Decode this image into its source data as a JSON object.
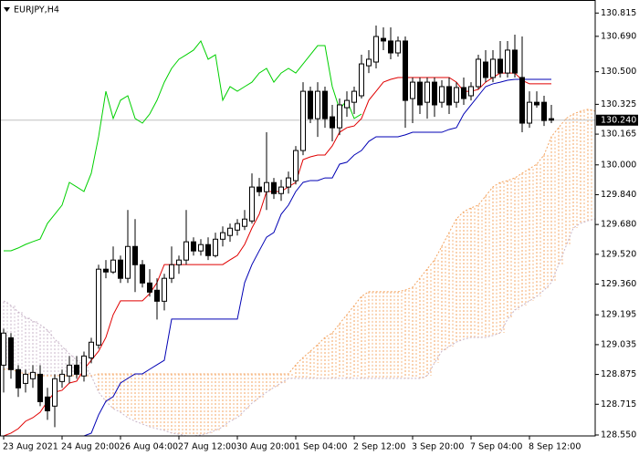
{
  "chart_data": {
    "type": "candlestick",
    "title": "EURJPY,H4",
    "categories": [
      "23 Aug 2021",
      null,
      null,
      null,
      null,
      null,
      null,
      null,
      "24 Aug 20:00",
      null,
      null,
      null,
      null,
      null,
      null,
      null,
      "26 Aug 04:00",
      null,
      null,
      null,
      null,
      null,
      null,
      null,
      "27 Aug 12:00",
      null,
      null,
      null,
      null,
      null,
      null,
      null,
      "30 Aug 20:00",
      null,
      null,
      null,
      null,
      null,
      null,
      null,
      "1 Sep 04:00",
      null,
      null,
      null,
      null,
      null,
      null,
      null,
      "2 Sep 12:00",
      null,
      null,
      null,
      null,
      null,
      null,
      null,
      "3 Sep 20:00",
      null,
      null,
      null,
      null,
      null,
      null,
      null,
      "7 Sep 04:00",
      null,
      null,
      null,
      null,
      null,
      null,
      null,
      "8 Sep 12:00",
      null,
      null,
      null,
      null,
      null,
      null,
      null,
      null,
      null
    ],
    "ohlc": [
      [
        128.925,
        129.121,
        128.778,
        129.097
      ],
      [
        129.072,
        129.097,
        128.852,
        128.901
      ],
      [
        128.901,
        128.925,
        128.754,
        128.803
      ],
      [
        128.827,
        128.901,
        128.778,
        128.876
      ],
      [
        128.852,
        128.925,
        128.803,
        128.886
      ],
      [
        128.876,
        128.925,
        128.705,
        128.729
      ],
      [
        128.754,
        128.803,
        128.631,
        128.68
      ],
      [
        128.705,
        128.876,
        128.592,
        128.852
      ],
      [
        128.837,
        128.901,
        128.803,
        128.876
      ],
      [
        128.867,
        128.974,
        128.827,
        128.925
      ],
      [
        128.925,
        128.974,
        128.852,
        128.876
      ],
      [
        128.867,
        128.998,
        128.837,
        128.974
      ],
      [
        128.964,
        129.072,
        128.935,
        129.048
      ],
      [
        129.033,
        129.464,
        129.013,
        129.44
      ],
      [
        129.44,
        129.489,
        129.391,
        129.425
      ],
      [
        129.425,
        129.562,
        129.415,
        129.489
      ],
      [
        129.489,
        129.513,
        129.366,
        129.391
      ],
      [
        129.391,
        129.758,
        129.366,
        129.562
      ],
      [
        129.562,
        129.709,
        129.317,
        129.464
      ],
      [
        129.464,
        129.489,
        129.342,
        129.366
      ],
      [
        129.366,
        129.44,
        129.293,
        129.317
      ],
      [
        129.327,
        129.391,
        129.17,
        129.268
      ],
      [
        129.268,
        129.415,
        129.219,
        129.391
      ],
      [
        129.391,
        129.562,
        129.366,
        129.464
      ],
      [
        129.464,
        129.513,
        129.415,
        129.489
      ],
      [
        129.489,
        129.758,
        129.464,
        129.587
      ],
      [
        129.587,
        129.611,
        129.513,
        129.538
      ],
      [
        129.538,
        129.601,
        129.513,
        129.572
      ],
      [
        129.572,
        129.611,
        129.489,
        129.513
      ],
      [
        129.513,
        129.636,
        129.503,
        129.601
      ],
      [
        129.601,
        129.67,
        129.562,
        129.636
      ],
      [
        129.621,
        129.685,
        129.587,
        129.66
      ],
      [
        129.65,
        129.709,
        129.621,
        129.685
      ],
      [
        129.67,
        129.758,
        129.65,
        129.709
      ],
      [
        129.699,
        129.954,
        129.685,
        129.881
      ],
      [
        129.881,
        129.93,
        129.832,
        129.856
      ],
      [
        129.856,
        130.175,
        129.758,
        129.905
      ],
      [
        129.905,
        129.93,
        129.817,
        129.846
      ],
      [
        129.846,
        129.92,
        129.807,
        129.881
      ],
      [
        129.881,
        129.964,
        129.846,
        129.93
      ],
      [
        129.915,
        130.101,
        129.895,
        130.077
      ],
      [
        130.077,
        130.444,
        130.052,
        130.395
      ],
      [
        130.395,
        130.42,
        130.224,
        130.248
      ],
      [
        130.248,
        130.444,
        130.15,
        130.395
      ],
      [
        130.395,
        130.42,
        130.199,
        130.248
      ],
      [
        130.258,
        130.322,
        130.126,
        130.199
      ],
      [
        130.199,
        130.356,
        130.16,
        130.322
      ],
      [
        130.307,
        130.395,
        130.258,
        130.346
      ],
      [
        130.336,
        130.42,
        130.273,
        130.395
      ],
      [
        130.371,
        130.591,
        130.356,
        130.542
      ],
      [
        130.532,
        130.616,
        130.493,
        130.567
      ],
      [
        130.552,
        130.748,
        130.518,
        130.689
      ],
      [
        130.679,
        130.738,
        130.616,
        130.665
      ],
      [
        130.665,
        130.738,
        130.567,
        130.601
      ],
      [
        130.601,
        130.689,
        130.581,
        130.665
      ],
      [
        130.665,
        130.689,
        130.199,
        130.346
      ],
      [
        130.356,
        130.469,
        130.224,
        130.444
      ],
      [
        130.444,
        130.469,
        130.273,
        130.322
      ],
      [
        130.336,
        130.469,
        130.248,
        130.444
      ],
      [
        130.444,
        130.469,
        130.258,
        130.322
      ],
      [
        130.336,
        130.454,
        130.307,
        130.42
      ],
      [
        130.42,
        130.469,
        130.273,
        130.322
      ],
      [
        130.336,
        130.444,
        130.307,
        130.415
      ],
      [
        130.415,
        130.469,
        130.322,
        130.356
      ],
      [
        130.371,
        130.444,
        130.346,
        130.42
      ],
      [
        130.42,
        130.591,
        130.405,
        130.567
      ],
      [
        130.552,
        130.616,
        130.444,
        130.469
      ],
      [
        130.469,
        130.616,
        130.444,
        130.567
      ],
      [
        130.567,
        130.665,
        130.469,
        130.493
      ],
      [
        130.493,
        130.665,
        130.469,
        130.616
      ],
      [
        130.616,
        130.699,
        130.469,
        130.493
      ],
      [
        130.469,
        130.689,
        130.175,
        130.224
      ],
      [
        130.224,
        130.395,
        130.199,
        130.336
      ],
      [
        130.336,
        130.395,
        130.307,
        130.322
      ],
      [
        130.336,
        130.371,
        130.209,
        130.238
      ],
      [
        130.248,
        130.322,
        130.224,
        130.24
      ],
      null,
      null,
      null,
      null,
      null,
      null
    ],
    "bull_color": "#ffffff",
    "bear_color": "#000000",
    "lines": [
      {
        "color": "#e00000",
        "values": [
          128.545,
          128.56,
          128.584,
          128.624,
          128.643,
          128.672,
          128.731,
          128.78,
          128.79,
          128.829,
          128.839,
          128.903,
          128.951,
          129.0,
          129.074,
          129.196,
          129.27,
          129.27,
          129.27,
          129.27,
          129.309,
          129.368,
          129.465,
          129.465,
          129.465,
          129.465,
          129.465,
          129.465,
          129.465,
          129.465,
          129.465,
          129.49,
          129.514,
          129.573,
          129.661,
          129.735,
          129.857,
          129.857,
          129.857,
          129.882,
          129.906,
          130.028,
          130.043,
          130.053,
          130.053,
          130.102,
          130.175,
          130.2,
          130.209,
          130.249,
          130.347,
          130.395,
          130.444,
          130.459,
          130.469,
          130.469,
          130.469,
          130.469,
          130.469,
          130.469,
          130.469,
          130.469,
          130.444,
          130.395,
          130.395,
          130.405,
          130.444,
          130.469,
          130.493,
          130.493,
          130.493,
          130.454,
          130.435,
          130.435,
          130.435,
          130.435,
          null,
          null,
          null,
          null,
          null,
          null
        ]
      },
      {
        "color": "#0000b4",
        "values": [
          128.545,
          128.545,
          128.545,
          128.545,
          128.545,
          128.545,
          128.545,
          128.545,
          128.545,
          128.545,
          128.545,
          128.545,
          128.56,
          128.658,
          128.731,
          128.756,
          128.829,
          128.854,
          128.878,
          128.878,
          128.903,
          128.927,
          128.951,
          129.172,
          129.172,
          129.172,
          129.172,
          129.172,
          129.172,
          129.172,
          129.172,
          129.172,
          129.172,
          129.368,
          129.465,
          129.539,
          129.612,
          129.637,
          129.735,
          129.784,
          129.857,
          129.906,
          129.916,
          129.916,
          129.93,
          129.93,
          130.004,
          130.014,
          130.053,
          130.077,
          130.126,
          130.151,
          130.151,
          130.151,
          130.151,
          130.161,
          130.175,
          130.175,
          130.175,
          130.175,
          130.175,
          130.19,
          130.2,
          130.273,
          130.322,
          130.371,
          130.42,
          130.435,
          130.444,
          130.454,
          130.459,
          130.459,
          130.459,
          130.459,
          130.459,
          130.459,
          null,
          null,
          null,
          null,
          null,
          null
        ]
      },
      {
        "color": "#00d000",
        "values": [
          129.539,
          129.539,
          129.554,
          129.573,
          129.588,
          129.602,
          129.686,
          129.735,
          129.784,
          129.906,
          129.882,
          129.857,
          129.955,
          130.151,
          130.395,
          130.249,
          130.347,
          130.371,
          130.249,
          130.224,
          130.273,
          130.347,
          130.444,
          130.518,
          130.567,
          130.591,
          130.616,
          130.665,
          130.567,
          130.591,
          130.347,
          130.42,
          130.395,
          130.42,
          130.444,
          130.493,
          130.518,
          130.444,
          130.493,
          130.518,
          130.493,
          130.542,
          130.591,
          130.64,
          130.64,
          130.42,
          130.298,
          130.347,
          130.249,
          130.273,
          null,
          null,
          null,
          null,
          null,
          null,
          null,
          null,
          null,
          null,
          null,
          null,
          null,
          null,
          null,
          null,
          null,
          null,
          null,
          null,
          null,
          null,
          null,
          null,
          null,
          null,
          null,
          null,
          null,
          null,
          null,
          null
        ]
      }
    ],
    "cloud": {
      "span_a": {
        "color": "#f4a460",
        "values": [
          128.903,
          128.903,
          128.888,
          128.878,
          128.878,
          128.868,
          128.868,
          128.868,
          128.868,
          128.868,
          128.868,
          128.868,
          128.868,
          128.878,
          128.878,
          128.878,
          128.878,
          128.878,
          128.878,
          128.878,
          128.878,
          128.878,
          128.878,
          128.878,
          128.878,
          128.878,
          128.878,
          128.878,
          128.878,
          128.878,
          128.878,
          128.878,
          128.878,
          128.878,
          128.878,
          128.878,
          128.878,
          128.878,
          128.878,
          128.878,
          128.927,
          128.966,
          129.0,
          129.035,
          129.074,
          129.098,
          129.147,
          129.196,
          129.245,
          129.294,
          129.319,
          129.319,
          129.319,
          129.319,
          129.319,
          129.328,
          129.343,
          129.392,
          129.441,
          129.49,
          129.563,
          129.637,
          129.71,
          129.749,
          129.769,
          129.784,
          129.833,
          129.882,
          129.906,
          129.916,
          129.93,
          129.955,
          129.979,
          130.004,
          130.053,
          130.151,
          130.2,
          130.249,
          130.273,
          130.288,
          130.298,
          130.288
        ]
      },
      "span_b": {
        "color": "#c8b4c8",
        "values": [
          129.27,
          129.245,
          129.211,
          129.182,
          129.162,
          129.142,
          129.113,
          129.064,
          129.025,
          128.986,
          128.951,
          128.927,
          128.868,
          128.78,
          128.731,
          128.692,
          128.672,
          128.643,
          128.624,
          128.609,
          128.594,
          128.584,
          128.575,
          128.56,
          128.555,
          128.545,
          128.545,
          128.55,
          128.56,
          128.575,
          128.594,
          128.624,
          128.643,
          128.682,
          128.721,
          128.751,
          128.78,
          128.805,
          128.829,
          128.854,
          128.854,
          128.854,
          128.854,
          128.854,
          128.854,
          128.854,
          128.854,
          128.854,
          128.854,
          128.854,
          128.854,
          128.854,
          128.854,
          128.854,
          128.854,
          128.854,
          128.854,
          128.854,
          128.868,
          128.937,
          129.0,
          129.025,
          129.049,
          129.064,
          129.074,
          129.074,
          129.074,
          129.084,
          129.098,
          129.172,
          129.221,
          129.245,
          129.27,
          129.294,
          129.328,
          129.368,
          129.465,
          129.563,
          129.661,
          129.686,
          129.7,
          129.71
        ]
      }
    },
    "current_price": {
      "value": 130.24,
      "label": "130.240"
    },
    "ylim": [
      128.545,
      130.885
    ],
    "yticks": [
      130.815,
      {
        "value": 130.69,
        "label": "130.690"
      },
      {
        "value": 130.5,
        "label": "130.500"
      },
      130.325,
      130.165,
      {
        "value": 130.0,
        "label": "130.000"
      },
      {
        "value": 129.84,
        "label": "129.840"
      },
      {
        "value": 129.68,
        "label": "129.680"
      },
      {
        "value": 129.52,
        "label": "129.520"
      },
      {
        "value": 129.36,
        "label": "129.360"
      },
      129.195,
      129.035,
      128.875,
      128.715,
      {
        "value": 128.55,
        "label": "128.550"
      }
    ],
    "grid": false
  }
}
